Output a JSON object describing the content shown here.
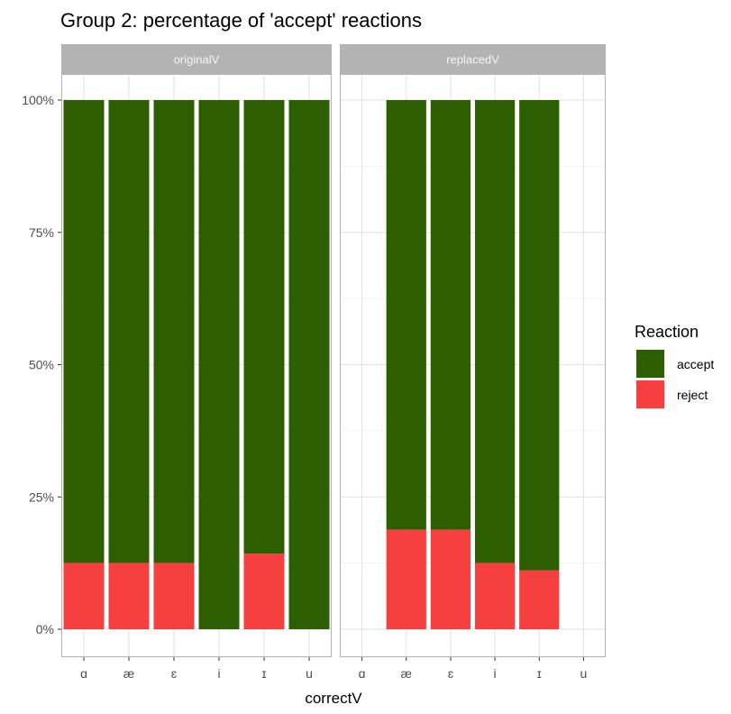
{
  "chart_data": {
    "type": "bar",
    "stacked": true,
    "title": "Group 2: percentage of 'accept' reactions",
    "xlabel": "correctV",
    "ylabel": "",
    "ylim": [
      0,
      1
    ],
    "y_ticks": [
      "0%",
      "25%",
      "50%",
      "75%",
      "100%"
    ],
    "y_tick_values": [
      0,
      0.25,
      0.5,
      0.75,
      1.0
    ],
    "grid": true,
    "legend": {
      "title": "Reaction",
      "position": "right",
      "entries": [
        {
          "name": "accept",
          "color": "#2d5e00"
        },
        {
          "name": "reject",
          "color": "#f64040"
        }
      ]
    },
    "categories": [
      "ɑ",
      "æ",
      "ɛ",
      "i",
      "ɪ",
      "u"
    ],
    "panels": [
      {
        "label": "originalV",
        "bars": [
          {
            "category": "ɑ",
            "reject": 0.125,
            "accept": 0.875
          },
          {
            "category": "æ",
            "reject": 0.125,
            "accept": 0.875
          },
          {
            "category": "ɛ",
            "reject": 0.125,
            "accept": 0.875
          },
          {
            "category": "i",
            "reject": 0.0,
            "accept": 1.0
          },
          {
            "category": "ɪ",
            "reject": 0.143,
            "accept": 0.857
          },
          {
            "category": "u",
            "reject": 0.0,
            "accept": 1.0
          }
        ]
      },
      {
        "label": "replacedV",
        "bars": [
          {
            "category": "æ",
            "reject": 0.188,
            "accept": 0.812
          },
          {
            "category": "ɛ",
            "reject": 0.188,
            "accept": 0.812
          },
          {
            "category": "i",
            "reject": 0.125,
            "accept": 0.875
          },
          {
            "category": "ɪ",
            "reject": 0.111,
            "accept": 0.889
          }
        ]
      }
    ]
  }
}
